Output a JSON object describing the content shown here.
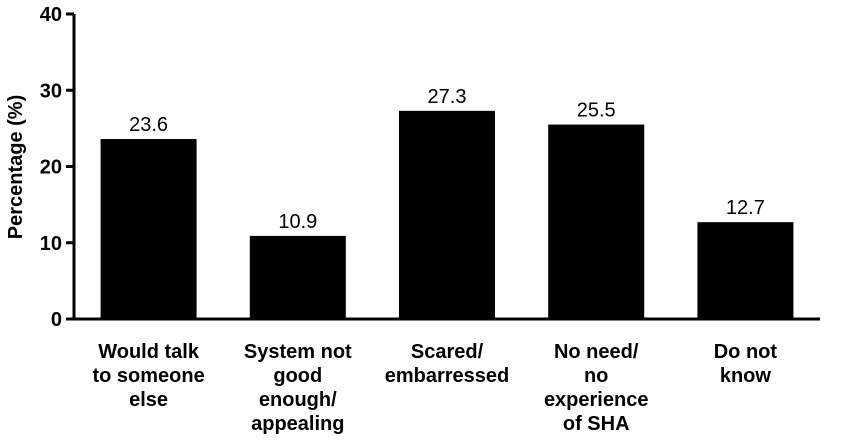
{
  "chart_data": {
    "type": "bar",
    "title": "",
    "xlabel": "",
    "ylabel": "Percentage (%)",
    "ylim": [
      0,
      40
    ],
    "yticks": [
      0,
      10,
      20,
      30,
      40
    ],
    "grid": false,
    "legend": "none",
    "bar_color": "#000000",
    "categories": [
      [
        "Would talk",
        "to someone",
        "else"
      ],
      [
        "System not",
        "good",
        "enough/",
        "appealing"
      ],
      [
        "Scared/",
        "embarressed"
      ],
      [
        "No need/",
        "no",
        "experience",
        "of SHA"
      ],
      [
        "Do not",
        "know"
      ]
    ],
    "values": [
      23.6,
      10.9,
      27.3,
      25.5,
      12.7
    ],
    "value_labels": [
      "23.6",
      "10.9",
      "27.3",
      "25.5",
      "12.7"
    ]
  }
}
